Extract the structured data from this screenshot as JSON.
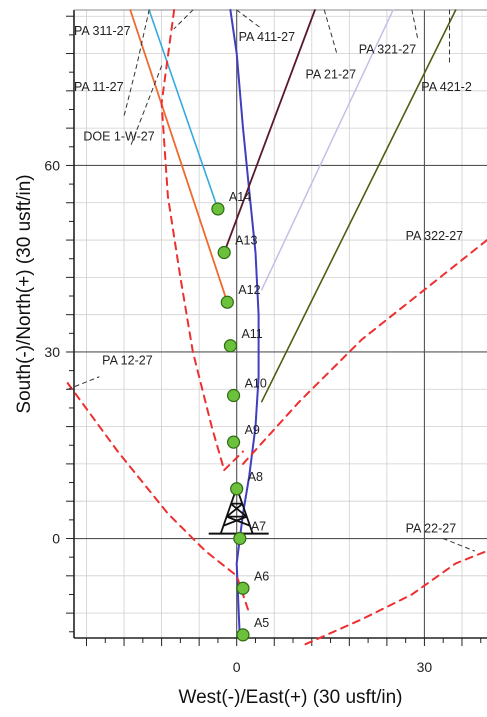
{
  "chart_data": {
    "type": "line",
    "xlabel": "West(-)/East(+) (30 usft/in)",
    "ylabel": "South(-)/North(+) (30 usft/in)",
    "xlim": [
      -26,
      40
    ],
    "ylim": [
      -16,
      85
    ],
    "x_ticks": [
      0,
      30
    ],
    "y_ticks": [
      0,
      30,
      60
    ],
    "grid": true,
    "minor_grid_step": 6,
    "rig_symbol": {
      "x": 0,
      "y": 4,
      "name": "drilling rig"
    },
    "series": [
      {
        "name": "",
        "color": "#3f3fbf",
        "width": 2,
        "dash": "",
        "points": [
          [
            -1,
            85
          ],
          [
            0,
            78
          ],
          [
            1,
            66
          ],
          [
            2,
            56
          ],
          [
            3,
            46
          ],
          [
            3.5,
            36
          ],
          [
            3.5,
            26
          ],
          [
            3,
            18
          ],
          [
            2,
            10
          ],
          [
            1,
            4
          ],
          [
            0,
            -4
          ],
          [
            0.5,
            -16
          ]
        ]
      },
      {
        "name": "",
        "color": "#36a9e0",
        "width": 1.6,
        "dash": "",
        "points": [
          [
            -14,
            85
          ],
          [
            -3,
            53
          ]
        ]
      },
      {
        "name": "",
        "color": "#ef6a2c",
        "width": 1.8,
        "dash": "",
        "points": [
          [
            -17,
            85
          ],
          [
            -1.5,
            38
          ]
        ]
      },
      {
        "name": "",
        "color": "#5a1a2a",
        "width": 1.8,
        "dash": "",
        "points": [
          [
            12.5,
            85
          ],
          [
            -2,
            46
          ]
        ]
      },
      {
        "name": "",
        "color": "#c3c0e6",
        "width": 1.5,
        "dash": "",
        "points": [
          [
            25,
            85
          ],
          [
            4,
            40
          ]
        ]
      },
      {
        "name": "",
        "color": "#4c5f12",
        "width": 1.6,
        "dash": "",
        "points": [
          [
            35,
            85
          ],
          [
            4,
            22
          ]
        ]
      },
      {
        "name": "",
        "color": "#ee2f2f",
        "width": 2,
        "dash": "7,6",
        "points": [
          [
            -10,
            85
          ],
          [
            -12,
            70
          ],
          [
            -11,
            55
          ],
          [
            -9,
            42
          ],
          [
            -7,
            30
          ],
          [
            -4,
            18
          ],
          [
            -2,
            11
          ]
        ]
      },
      {
        "name": "",
        "color": "#ee2f2f",
        "width": 2,
        "dash": "7,6",
        "points": [
          [
            -2,
            11
          ],
          [
            1,
            14
          ]
        ]
      },
      {
        "name": "",
        "color": "#ee2f2f",
        "width": 2,
        "dash": "7,6",
        "points": [
          [
            -27,
            25
          ],
          [
            -19,
            14
          ],
          [
            -11,
            4
          ],
          [
            -5,
            -2
          ],
          [
            0,
            -6
          ],
          [
            2,
            -12
          ]
        ]
      },
      {
        "name": "",
        "color": "#ee2f2f",
        "width": 2,
        "dash": "7,6",
        "points": [
          [
            1,
            12
          ],
          [
            10,
            22
          ],
          [
            20,
            32
          ],
          [
            30,
            40
          ],
          [
            40,
            48
          ]
        ]
      },
      {
        "name": "",
        "color": "#ee2f2f",
        "width": 2,
        "dash": "7,6",
        "points": [
          [
            11,
            -17
          ],
          [
            20,
            -13
          ],
          [
            28,
            -9
          ],
          [
            35,
            -4
          ],
          [
            40,
            -2
          ]
        ]
      },
      {
        "name": "",
        "color": "#333333",
        "width": 1,
        "dash": "4,4",
        "points": [
          [
            -14,
            85
          ],
          [
            -16,
            76
          ],
          [
            -18,
            68
          ]
        ]
      },
      {
        "name": "",
        "color": "#333333",
        "width": 1,
        "dash": "4,4",
        "points": [
          [
            -12,
            76
          ],
          [
            -17,
            63
          ]
        ]
      },
      {
        "name": "",
        "color": "#333333",
        "width": 1,
        "dash": "4,4",
        "points": [
          [
            -7,
            85
          ],
          [
            -10,
            82
          ]
        ]
      },
      {
        "name": "",
        "color": "#333333",
        "width": 1,
        "dash": "4,4",
        "points": [
          [
            0,
            85
          ],
          [
            4,
            82
          ]
        ]
      },
      {
        "name": "",
        "color": "#333333",
        "width": 1,
        "dash": "4,4",
        "points": [
          [
            14,
            85
          ],
          [
            16,
            78
          ]
        ]
      },
      {
        "name": "",
        "color": "#333333",
        "width": 1,
        "dash": "4,4",
        "points": [
          [
            28,
            85
          ],
          [
            29,
            80
          ]
        ]
      },
      {
        "name": "",
        "color": "#333333",
        "width": 1,
        "dash": "4,4",
        "points": [
          [
            34,
            85
          ],
          [
            34,
            76
          ]
        ]
      },
      {
        "name": "",
        "color": "#333333",
        "width": 1,
        "dash": "4,4",
        "points": [
          [
            -27,
            24
          ],
          [
            -22,
            26
          ]
        ]
      },
      {
        "name": "",
        "color": "#333333",
        "width": 1,
        "dash": "4,4",
        "points": [
          [
            33,
            0
          ],
          [
            38,
            -2
          ]
        ]
      }
    ],
    "stations": [
      {
        "label": "A14",
        "x": -3,
        "y": 53
      },
      {
        "label": "A13",
        "x": -2,
        "y": 46
      },
      {
        "label": "A12",
        "x": -1.5,
        "y": 38
      },
      {
        "label": "A11",
        "x": -1,
        "y": 31
      },
      {
        "label": "A10",
        "x": -0.5,
        "y": 23
      },
      {
        "label": "A9",
        "x": -0.5,
        "y": 15.5
      },
      {
        "label": "A8",
        "x": 0,
        "y": 8
      },
      {
        "label": "A7",
        "x": 0.5,
        "y": 0
      },
      {
        "label": "A6",
        "x": 1,
        "y": -8
      },
      {
        "label": "A5",
        "x": 1,
        "y": -15.5
      }
    ],
    "well_labels": [
      {
        "text": "PA 311-27",
        "x": -26,
        "y": 81
      },
      {
        "text": "PA 411-27",
        "x": 0.3,
        "y": 80
      },
      {
        "text": "PA 321-27",
        "x": 19.5,
        "y": 78
      },
      {
        "text": "PA 21-27",
        "x": 11,
        "y": 74
      },
      {
        "text": "PA 421-2",
        "x": 29.5,
        "y": 72
      },
      {
        "text": "PA 11-27",
        "x": -26,
        "y": 72
      },
      {
        "text": "DOE 1-W-27",
        "x": -24.5,
        "y": 64
      },
      {
        "text": "PA 322-27",
        "x": 27,
        "y": 48
      },
      {
        "text": "PA 12-27",
        "x": -21.5,
        "y": 28
      },
      {
        "text": "PA 22-27",
        "x": 27,
        "y": 1
      }
    ]
  }
}
